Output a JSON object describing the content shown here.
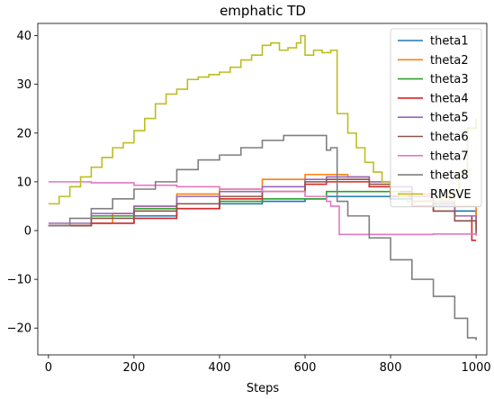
{
  "chart_data": {
    "type": "line",
    "title": "emphatic TD",
    "xlabel": "Steps",
    "ylabel": "",
    "xlim": [
      -25,
      1025
    ],
    "ylim": [
      -25.5,
      42.5
    ],
    "xticks": [
      0,
      200,
      400,
      600,
      800,
      1000
    ],
    "yticks": [
      -20,
      -10,
      0,
      10,
      20,
      30,
      40
    ],
    "grid": false,
    "legend_position": "top-right",
    "series": [
      {
        "name": "theta1",
        "color": "#1f77b4",
        "x": [
          0,
          100,
          200,
          300,
          400,
          500,
          600,
          650,
          700,
          750,
          800,
          850,
          900,
          950,
          1000
        ],
        "y": [
          1,
          1.5,
          3,
          4.5,
          5.5,
          6,
          6.5,
          7,
          7,
          7,
          6.5,
          6,
          5.5,
          4,
          1.5
        ]
      },
      {
        "name": "theta2",
        "color": "#ff7f0e",
        "x": [
          0,
          50,
          100,
          150,
          200,
          300,
          400,
          500,
          600,
          650,
          700,
          750,
          800,
          850,
          900,
          950,
          1000
        ],
        "y": [
          1,
          1,
          1.5,
          3.5,
          5,
          7.5,
          8.5,
          10.5,
          11.5,
          11.5,
          11,
          10,
          9,
          7.5,
          6,
          5,
          1
        ]
      },
      {
        "name": "theta3",
        "color": "#2ca02c",
        "x": [
          0,
          100,
          200,
          300,
          400,
          500,
          600,
          650,
          700,
          750,
          800,
          850,
          900,
          950,
          1000
        ],
        "y": [
          1,
          3,
          4.5,
          5.5,
          6,
          6.5,
          6.5,
          8,
          8,
          8,
          7,
          6,
          5,
          3,
          3
        ]
      },
      {
        "name": "theta4",
        "color": "#d62728",
        "x": [
          0,
          100,
          200,
          300,
          400,
          500,
          600,
          650,
          700,
          750,
          800,
          850,
          900,
          950,
          990,
          1000
        ],
        "y": [
          1,
          1.5,
          2.5,
          4.5,
          6.5,
          8,
          9.5,
          10,
          10,
          9,
          7,
          5,
          4,
          3,
          -2,
          -2
        ]
      },
      {
        "name": "theta5",
        "color": "#9467bd",
        "x": [
          0,
          100,
          200,
          300,
          400,
          500,
          600,
          650,
          700,
          750,
          800,
          850,
          900,
          950,
          1000
        ],
        "y": [
          1.5,
          3.5,
          5,
          7,
          8,
          9,
          10.5,
          11,
          11,
          10,
          9,
          7,
          5,
          3,
          0
        ]
      },
      {
        "name": "theta6",
        "color": "#8c564b",
        "x": [
          0,
          100,
          200,
          300,
          400,
          500,
          600,
          650,
          700,
          750,
          800,
          850,
          900,
          950,
          1000
        ],
        "y": [
          1,
          2.5,
          4,
          5.5,
          7,
          8,
          10,
          10.5,
          10.5,
          9.5,
          8,
          6,
          4,
          2,
          -1
        ]
      },
      {
        "name": "theta7",
        "color": "#e377c2",
        "x": [
          0,
          100,
          200,
          300,
          400,
          500,
          600,
          650,
          660,
          670,
          680,
          700,
          800,
          900,
          1000
        ],
        "y": [
          10,
          9.8,
          9.3,
          9,
          8.5,
          8,
          7,
          6,
          5,
          5,
          -0.8,
          -0.8,
          -0.8,
          -0.7,
          -0.5
        ]
      },
      {
        "name": "theta8",
        "color": "#7f7f7f",
        "x": [
          0,
          50,
          100,
          150,
          200,
          250,
          300,
          350,
          400,
          450,
          500,
          550,
          600,
          650,
          660,
          670,
          675,
          700,
          750,
          800,
          850,
          900,
          950,
          980,
          1000
        ],
        "y": [
          1,
          2.5,
          4.5,
          6.5,
          8.5,
          10,
          12.5,
          14.5,
          15.5,
          17,
          18.5,
          19.5,
          19.5,
          16.5,
          17,
          17,
          6,
          3,
          -1.5,
          -6,
          -10,
          -13.5,
          -18,
          -22,
          -22.5
        ]
      },
      {
        "name": "RMSVE",
        "color": "#bcbd22",
        "x": [
          0,
          25,
          50,
          75,
          100,
          125,
          150,
          175,
          200,
          225,
          250,
          275,
          300,
          325,
          350,
          375,
          400,
          425,
          450,
          475,
          500,
          520,
          540,
          560,
          580,
          590,
          600,
          620,
          640,
          660,
          670,
          675,
          680,
          700,
          720,
          740,
          760,
          780,
          800,
          820,
          840,
          860,
          880,
          900,
          920,
          940,
          960,
          980,
          1000
        ],
        "y": [
          5.5,
          7,
          9,
          11,
          13,
          15,
          17,
          18,
          20.5,
          23,
          26,
          28,
          29,
          31,
          31.5,
          32,
          32.5,
          33.5,
          35,
          36,
          38,
          38.5,
          37,
          37.5,
          38.5,
          40,
          36,
          37,
          36.5,
          37,
          37,
          24,
          24,
          20,
          17,
          14,
          12,
          10,
          8,
          7,
          6,
          6,
          6,
          6,
          7,
          8,
          12,
          21,
          23
        ]
      }
    ]
  }
}
